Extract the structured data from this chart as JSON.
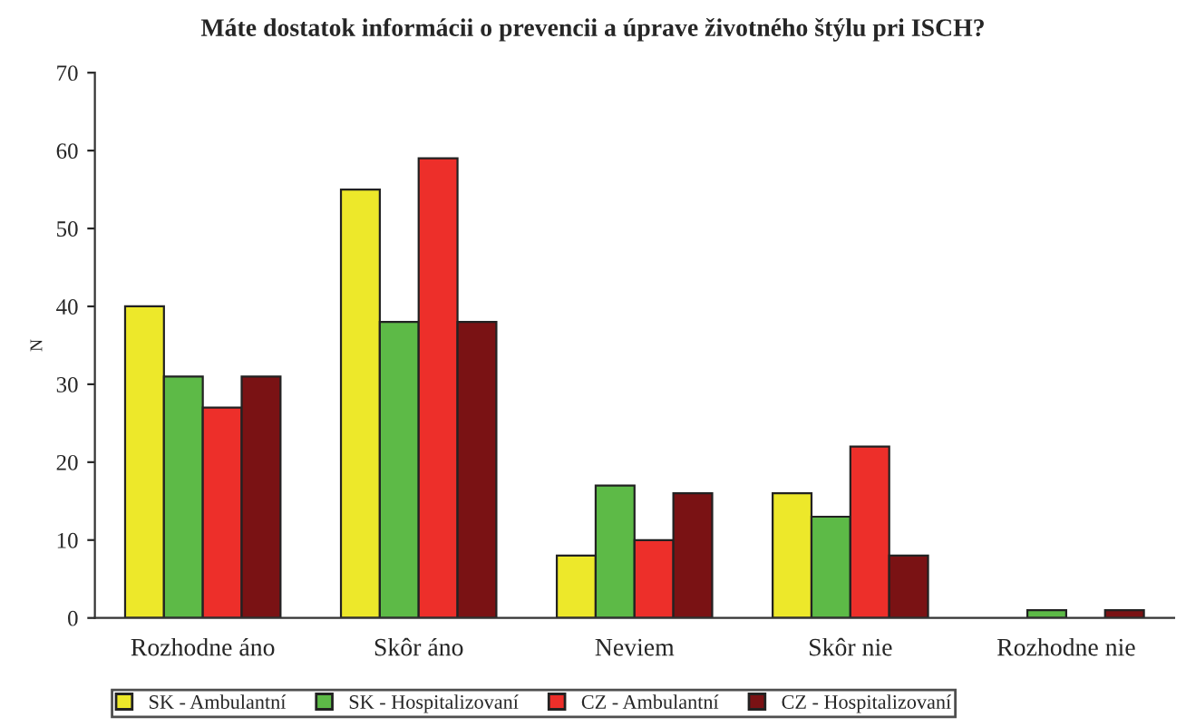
{
  "chart_data": {
    "type": "bar",
    "title": "Máte dostatok informácii o prevencii a úprave životného štýlu pri ISCH?",
    "ylabel": "N",
    "categories": [
      "Rozhodne áno",
      "Skôr áno",
      "Neviem",
      "Skôr nie",
      "Rozhodne nie"
    ],
    "series": [
      {
        "name": "SK - Ambulantní",
        "color": "#ede82a",
        "values": [
          40,
          55,
          8,
          16,
          null
        ]
      },
      {
        "name": "SK - Hospitalizovaní",
        "color": "#5dba47",
        "values": [
          31,
          38,
          17,
          13,
          1
        ]
      },
      {
        "name": "CZ - Ambulantní",
        "color": "#ed2f2a",
        "values": [
          27,
          59,
          10,
          22,
          null
        ]
      },
      {
        "name": "CZ - Hospitalizovaní",
        "color": "#7a1214",
        "values": [
          31,
          38,
          16,
          8,
          1
        ]
      }
    ],
    "ylim": [
      0,
      70
    ],
    "yticks": [
      0,
      10,
      20,
      30,
      40,
      50,
      60,
      70
    ],
    "grid": false,
    "legend": "bottom"
  }
}
